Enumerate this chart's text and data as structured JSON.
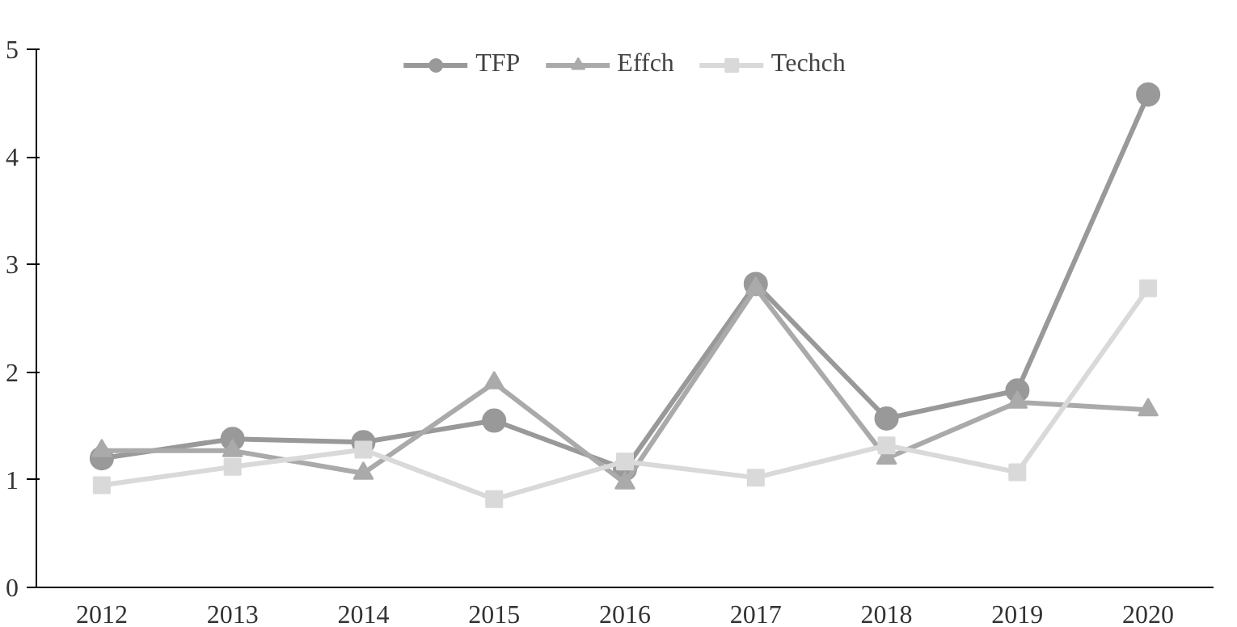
{
  "chart_data": {
    "type": "line",
    "categories": [
      "2012",
      "2013",
      "2014",
      "2015",
      "2016",
      "2017",
      "2018",
      "2019",
      "2020"
    ],
    "series": [
      {
        "name": "TFP",
        "color": "#999999",
        "marker": "circle",
        "values": [
          1.2,
          1.38,
          1.35,
          1.55,
          1.1,
          2.82,
          1.57,
          1.83,
          4.58
        ]
      },
      {
        "name": "Effch",
        "color": "#aaaaaa",
        "marker": "triangle",
        "values": [
          1.27,
          1.27,
          1.06,
          1.9,
          0.97,
          2.78,
          1.2,
          1.72,
          1.65
        ]
      },
      {
        "name": "Techch",
        "color": "#d9d9d9",
        "marker": "square",
        "values": [
          0.95,
          1.12,
          1.28,
          0.82,
          1.17,
          1.02,
          1.32,
          1.07,
          2.78
        ]
      }
    ],
    "ylim": [
      0,
      5
    ],
    "yticks": [
      0,
      1,
      2,
      3,
      4,
      5
    ],
    "grid": false,
    "legend": "top",
    "line_style": "solid"
  }
}
